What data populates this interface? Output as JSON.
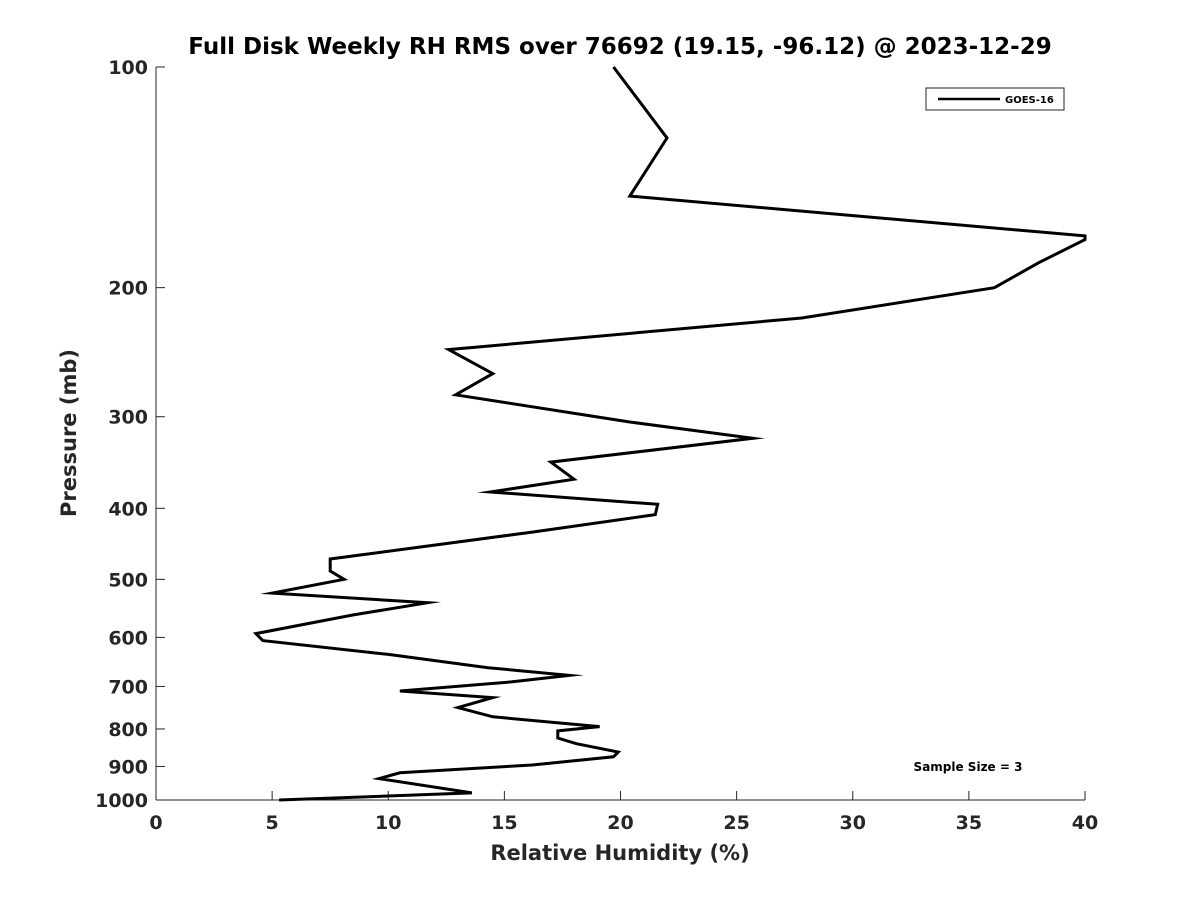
{
  "chart_data": {
    "type": "line",
    "title": "Full Disk Weekly RH RMS over 76692 (19.15, -96.12) @ 2023-12-29",
    "xlabel": "Relative Humidity (%)",
    "ylabel": "Pressure (mb)",
    "xlim": [
      0,
      40
    ],
    "ylim": [
      100,
      1000
    ],
    "yscale": "log",
    "y_reversed": true,
    "xticks": [
      0,
      5,
      10,
      15,
      20,
      25,
      30,
      35,
      40
    ],
    "yticks": [
      100,
      200,
      300,
      400,
      500,
      600,
      700,
      800,
      900,
      1000
    ],
    "grid": false,
    "legend_position": "top-right",
    "annotation": "Sample Size = 3",
    "series": [
      {
        "name": "GOES-16",
        "color": "#000000",
        "points": [
          [
            19.7,
            100
          ],
          [
            22.0,
            125
          ],
          [
            20.4,
            150
          ],
          [
            40.0,
            170
          ],
          [
            40.0,
            172
          ],
          [
            38.0,
            185
          ],
          [
            36.1,
            200
          ],
          [
            27.8,
            220
          ],
          [
            12.6,
            243
          ],
          [
            14.5,
            262
          ],
          [
            12.9,
            280
          ],
          [
            20.4,
            305
          ],
          [
            25.7,
            321
          ],
          [
            17.0,
            346
          ],
          [
            18.0,
            365
          ],
          [
            14.4,
            380
          ],
          [
            21.6,
            395
          ],
          [
            21.5,
            408
          ],
          [
            16.2,
            431
          ],
          [
            7.5,
            469
          ],
          [
            7.5,
            487
          ],
          [
            8.1,
            500
          ],
          [
            5.0,
            522
          ],
          [
            11.7,
            538
          ],
          [
            8.5,
            559
          ],
          [
            4.3,
            593
          ],
          [
            4.6,
            606
          ],
          [
            10.0,
            633
          ],
          [
            14.3,
            660
          ],
          [
            17.8,
            676
          ],
          [
            15.3,
            690
          ],
          [
            10.5,
            710
          ],
          [
            14.5,
            725
          ],
          [
            13.0,
            748
          ],
          [
            14.5,
            770
          ],
          [
            19.1,
            794
          ],
          [
            17.3,
            805
          ],
          [
            17.3,
            823
          ],
          [
            18.1,
            838
          ],
          [
            19.9,
            860
          ],
          [
            19.7,
            873
          ],
          [
            16.2,
            896
          ],
          [
            10.5,
            918
          ],
          [
            9.6,
            935
          ],
          [
            13.6,
            978
          ],
          [
            5.3,
            1000
          ]
        ]
      }
    ]
  }
}
